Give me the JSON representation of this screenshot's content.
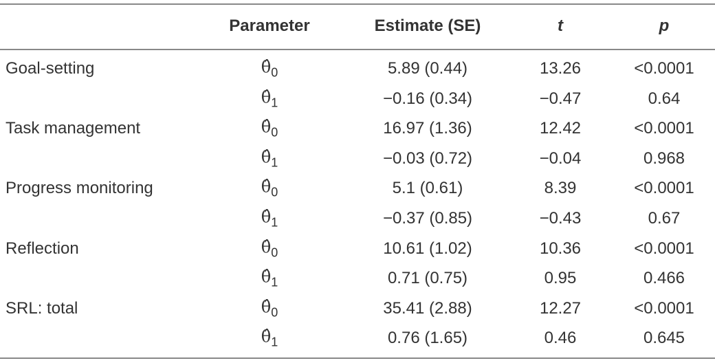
{
  "table": {
    "header": [
      "Parameter",
      "Estimate (SE)",
      "t",
      "p"
    ],
    "rows": [
      {
        "label": "Goal-setting",
        "param": {
          "symbol": "θ̂",
          "sub": "0"
        },
        "estimate": "5.89 (0.44)",
        "t": "13.26",
        "p": "<0.0001"
      },
      {
        "param": {
          "symbol": "θ̂",
          "sub": "1"
        },
        "estimate": "−0.16 (0.34)",
        "t": "−0.47",
        "p": "0.64"
      },
      {
        "label": "Task management",
        "param": {
          "symbol": "θ̂",
          "sub": "0"
        },
        "estimate": "16.97 (1.36)",
        "t": "12.42",
        "p": "<0.0001"
      },
      {
        "param": {
          "symbol": "θ̂",
          "sub": "1"
        },
        "estimate": "−0.03 (0.72)",
        "t": "−0.04",
        "p": "0.968"
      },
      {
        "label": "Progress monitoring",
        "param": {
          "symbol": "θ̂",
          "sub": "0"
        },
        "estimate": "5.1 (0.61)",
        "t": "8.39",
        "p": "<0.0001"
      },
      {
        "param": {
          "symbol": "θ̂",
          "sub": "1"
        },
        "estimate": "−0.37 (0.85)",
        "t": "−0.43",
        "p": "0.67"
      },
      {
        "label": "Reflection",
        "param": {
          "symbol": "θ̂",
          "sub": "0"
        },
        "estimate": "10.61 (1.02)",
        "t": "10.36",
        "p": "<0.0001"
      },
      {
        "param": {
          "symbol": "θ̂",
          "sub": "1"
        },
        "estimate": "0.71 (0.75)",
        "t": "0.95",
        "p": "0.466"
      },
      {
        "label": "SRL: total",
        "param": {
          "symbol": "θ̂",
          "sub": "0"
        },
        "estimate": "35.41 (2.88)",
        "t": "12.27",
        "p": "<0.0001"
      },
      {
        "param": {
          "symbol": "θ̂",
          "sub": "1"
        },
        "estimate": "0.76 (1.65)",
        "t": "0.46",
        "p": "0.645"
      }
    ]
  }
}
